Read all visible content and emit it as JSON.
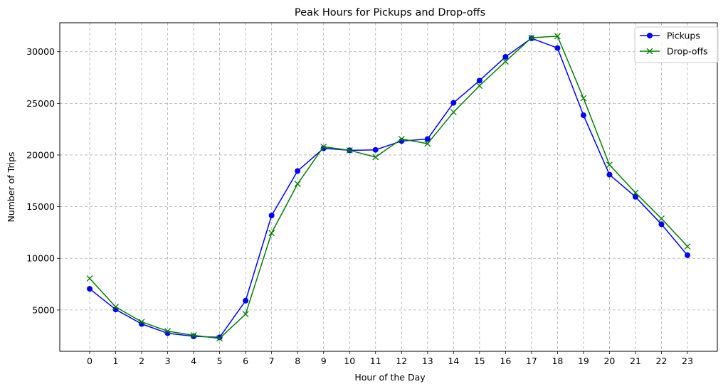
{
  "chart_data": {
    "type": "line",
    "title": "Peak Hours for Pickups and Drop-offs",
    "xlabel": "Hour of the Day",
    "ylabel": "Number of Trips",
    "x": [
      0,
      1,
      2,
      3,
      4,
      5,
      6,
      7,
      8,
      9,
      10,
      11,
      12,
      13,
      14,
      15,
      16,
      17,
      18,
      19,
      20,
      21,
      22,
      23
    ],
    "xlim": [
      -1.15,
      24.15
    ],
    "ylim": [
      1000,
      32800
    ],
    "yticks": [
      5000,
      10000,
      15000,
      20000,
      25000,
      30000
    ],
    "grid": true,
    "legend_position": "top-right",
    "series": [
      {
        "name": "Pickups",
        "color": "#0000ff",
        "marker": "circle",
        "values": [
          7050,
          5050,
          3650,
          2750,
          2450,
          2350,
          5900,
          14150,
          18450,
          20650,
          20450,
          20500,
          21350,
          21550,
          25050,
          27200,
          29500,
          31300,
          30350,
          23850,
          18100,
          15950,
          13300,
          10300
        ]
      },
      {
        "name": "Drop-offs",
        "color": "#008000",
        "marker": "x",
        "values": [
          8050,
          5300,
          3850,
          2950,
          2550,
          2250,
          4600,
          12450,
          17200,
          20800,
          20450,
          19800,
          21550,
          21100,
          24150,
          26700,
          29050,
          31350,
          31500,
          25500,
          19050,
          16350,
          13850,
          11150
        ]
      }
    ]
  }
}
